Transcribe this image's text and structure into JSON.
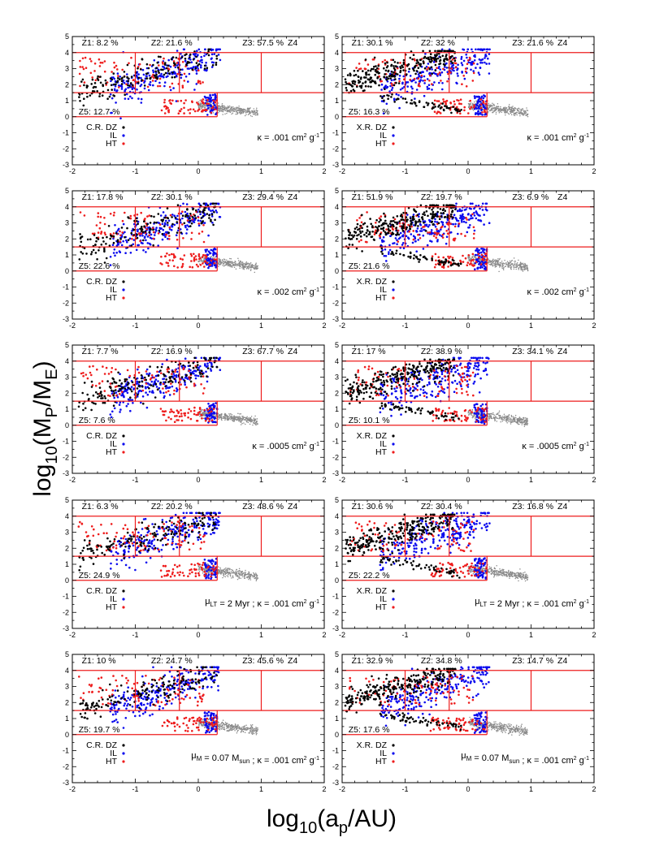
{
  "colors": {
    "zone": "#ee1c1c",
    "dz": "#000000",
    "il": "#0a0aee",
    "ht": "#ee1c1c",
    "other": "#8a8a8a"
  },
  "chart_data": {
    "type": "scatter",
    "xlabel": "log10(ap/AU)",
    "ylabel": "log10(MP/ME)",
    "xlim": [
      -2,
      2
    ],
    "ylim": [
      -3,
      5
    ],
    "x_ticks": [
      "-2",
      "-1",
      "0",
      "1",
      "2"
    ],
    "y_ticks": [
      "-3",
      "-2",
      "-1",
      "0",
      "1",
      "2",
      "3",
      "4",
      "5"
    ],
    "zone_boundaries": {
      "y_lines": [
        0.0,
        1.5,
        4.0
      ],
      "x_lines_upper": [
        -1.0,
        -0.3,
        1.0
      ],
      "z5_x_range": [
        -2.0,
        0.3
      ]
    },
    "panels": [
      {
        "row": 1,
        "col": 1,
        "method": "C.R. DZ",
        "il": "IL",
        "ht": "HT",
        "z1": "Z1: 8.2 %",
        "z2": "Z2: 21.6 %",
        "z3": "Z3: 57.5 %",
        "z4": "Z4",
        "z5": "Z5: 12.7 %",
        "params": "κ = .001 cm² g⁻¹"
      },
      {
        "row": 1,
        "col": 2,
        "method": "X.R. DZ",
        "il": "IL",
        "ht": "HT",
        "z1": "Z1: 30.1 %",
        "z2": "Z2: 32 %",
        "z3": "Z3: 21.6 %",
        "z4": "Z4",
        "z5": "Z5: 16.3 %",
        "params": "κ = .001 cm² g⁻¹"
      },
      {
        "row": 2,
        "col": 1,
        "method": "C.R. DZ",
        "il": "IL",
        "ht": "HT",
        "z1": "Z1: 17.8 %",
        "z2": "Z2: 30.1 %",
        "z3": "Z3: 29.4 %",
        "z4": "Z4",
        "z5": "Z5: 22.6 %",
        "params": "κ = .002 cm² g⁻¹"
      },
      {
        "row": 2,
        "col": 2,
        "method": "X.R. DZ",
        "il": "IL",
        "ht": "HT",
        "z1": "Z1: 51.9 %",
        "z2": "Z2: 19.7 %",
        "z3": "Z3: 6.9 %",
        "z4": "Z4",
        "z5": "Z5: 21.6 %",
        "params": "κ = .002 cm² g⁻¹"
      },
      {
        "row": 3,
        "col": 1,
        "method": "C.R. DZ",
        "il": "IL",
        "ht": "HT",
        "z1": "Z1: 7.7 %",
        "z2": "Z2: 16.9 %",
        "z3": "Z3: 67.7 %",
        "z4": "Z4",
        "z5": "Z5: 7.6 %",
        "params": "κ = .0005 cm² g⁻¹"
      },
      {
        "row": 3,
        "col": 2,
        "method": "X.R. DZ",
        "il": "IL",
        "ht": "HT",
        "z1": "Z1: 17 %",
        "z2": "Z2: 38.9 %",
        "z3": "Z3: 34.1 %",
        "z4": "Z4",
        "z5": "Z5: 10.1 %",
        "params": "κ = .0005 cm² g⁻¹"
      },
      {
        "row": 4,
        "col": 1,
        "method": "C.R. DZ",
        "il": "IL",
        "ht": "HT",
        "z1": "Z1: 6.3 %",
        "z2": "Z2: 20.2 %",
        "z3": "Z3: 48.6 %",
        "z4": "Z4",
        "z5": "Z5: 24.9 %",
        "params": "μLT = 2 Myr ; κ = .001 cm² g⁻¹"
      },
      {
        "row": 4,
        "col": 2,
        "method": "X.R. DZ",
        "il": "IL",
        "ht": "HT",
        "z1": "Z1: 30.6 %",
        "z2": "Z2: 30.4 %",
        "z3": "Z3: 16.8 %",
        "z4": "Z4",
        "z5": "Z5: 22.2 %",
        "params": "μLT = 2 Myr ; κ = .001 cm² g⁻¹"
      },
      {
        "row": 5,
        "col": 1,
        "method": "C.R. DZ",
        "il": "IL",
        "ht": "HT",
        "z1": "Z1: 10 %",
        "z2": "Z2: 24.7 %",
        "z3": "Z3: 45.6 %",
        "z4": "Z4",
        "z5": "Z5: 19.7 %",
        "params": "μM = 0.07 Msun ; κ = .001 cm² g⁻¹"
      },
      {
        "row": 5,
        "col": 2,
        "method": "X.R. DZ",
        "il": "IL",
        "ht": "HT",
        "z1": "Z1: 32.9 %",
        "z2": "Z2: 34.8 %",
        "z3": "Z3: 14.7 %",
        "z4": "Z4",
        "z5": "Z5: 17.6 %",
        "params": "μM = 0.07 Msun ; κ = .001 cm² g⁻¹"
      }
    ]
  }
}
